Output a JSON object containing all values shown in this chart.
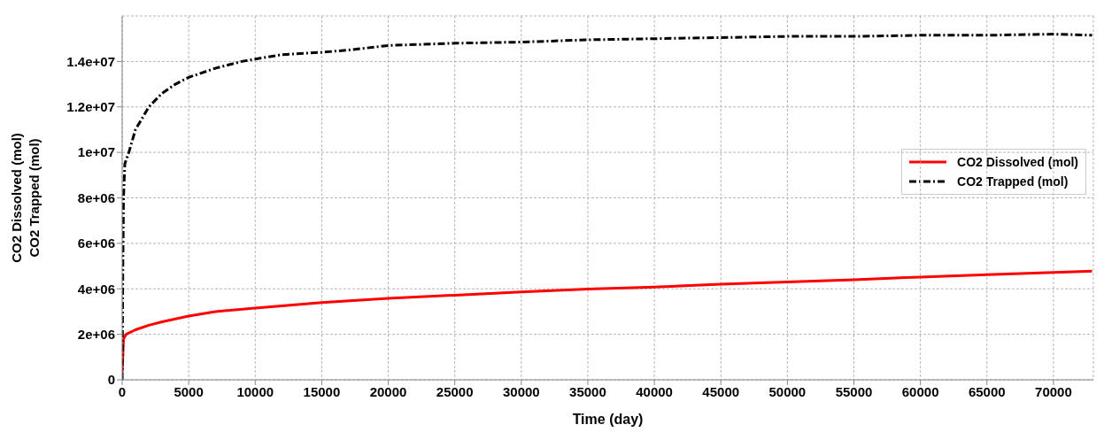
{
  "chart_data": {
    "type": "line",
    "xlabel": "Time (day)",
    "ylabel": "CO2 Dissolved (mol)\nCO2 Trapped (mol)",
    "xlim": [
      0,
      73000
    ],
    "xticks": [
      0,
      5000,
      10000,
      15000,
      20000,
      25000,
      30000,
      35000,
      40000,
      45000,
      50000,
      55000,
      60000,
      65000,
      70000
    ],
    "ylim": [
      0,
      16000000
    ],
    "yticks": [
      0,
      {
        "value": 2000000,
        "label": "2e+06"
      },
      {
        "value": 4000000,
        "label": "4e+06"
      },
      {
        "value": 6000000,
        "label": "6e+06"
      },
      {
        "value": 8000000,
        "label": "8e+06"
      },
      {
        "value": 10000000,
        "label": "1e+07"
      },
      {
        "value": 12000000,
        "label": "1.2e+07"
      },
      {
        "value": 14000000,
        "label": "1.4e+07"
      }
    ],
    "grid": true,
    "legend": "right",
    "marker": "none",
    "series": [
      {
        "name": "CO2 Dissolved (mol)",
        "color": "#ff0000",
        "line_style": "solid",
        "x": [
          0,
          50,
          100,
          300,
          1000,
          2000,
          3000,
          5000,
          7000,
          10000,
          15000,
          20000,
          25000,
          30000,
          35000,
          40000,
          45000,
          50000,
          55000,
          60000,
          65000,
          70000,
          72900
        ],
        "values": [
          300000,
          1000000,
          1800000,
          2000000,
          2200000,
          2400000,
          2550000,
          2800000,
          3000000,
          3150000,
          3400000,
          3580000,
          3720000,
          3860000,
          3990000,
          4080000,
          4200000,
          4300000,
          4400000,
          4520000,
          4620000,
          4720000,
          4780000
        ]
      },
      {
        "name": "CO2 Trapped (mol)",
        "color": "#000000",
        "line_style": "dashed",
        "x": [
          0,
          50,
          100,
          200,
          500,
          1000,
          2000,
          3000,
          4000,
          5000,
          7000,
          9000,
          10000,
          12000,
          15000,
          17000,
          20000,
          25000,
          30000,
          35000,
          40000,
          45000,
          50000,
          55000,
          60000,
          65000,
          70000,
          72900
        ],
        "values": [
          0,
          5000000,
          8000000,
          9500000,
          10000000,
          11000000,
          12000000,
          12600000,
          13000000,
          13300000,
          13700000,
          14000000,
          14100000,
          14300000,
          14400000,
          14500000,
          14700000,
          14800000,
          14850000,
          14950000,
          15000000,
          15050000,
          15100000,
          15100000,
          15150000,
          15150000,
          15200000,
          15150000
        ]
      }
    ]
  }
}
